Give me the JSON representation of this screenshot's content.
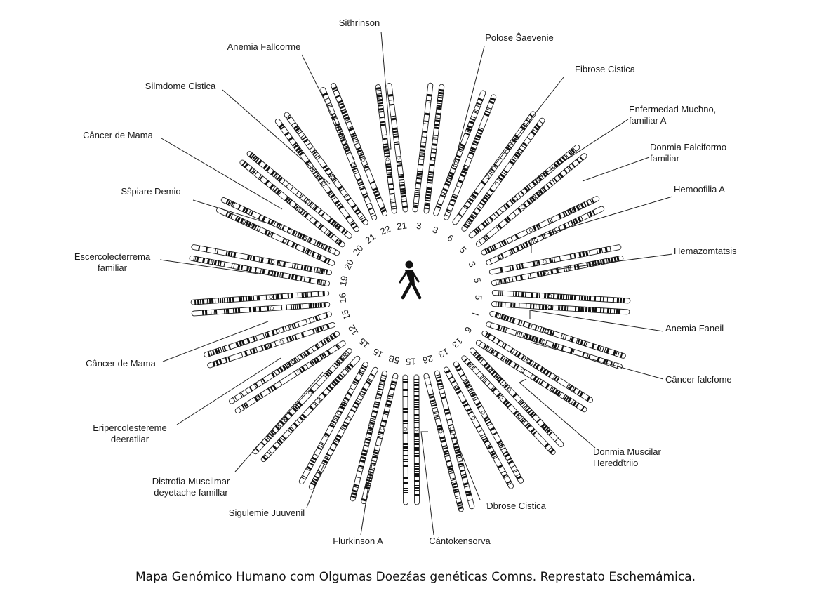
{
  "diagram": {
    "caption": "Mapa Genómico Humano com Olgumas Doezέas genéticas Comns. Represtato Eschemámica.",
    "center_icon": "walking-person-icon",
    "chromosomes": [
      {
        "label": "3"
      },
      {
        "label": "3"
      },
      {
        "label": "6"
      },
      {
        "label": "5"
      },
      {
        "label": "3"
      },
      {
        "label": "5"
      },
      {
        "label": "5"
      },
      {
        "label": "I"
      },
      {
        "label": "6"
      },
      {
        "label": "13"
      },
      {
        "label": "13"
      },
      {
        "label": "26"
      },
      {
        "label": "15"
      },
      {
        "label": "5B"
      },
      {
        "label": "15"
      },
      {
        "label": "15"
      },
      {
        "label": "12"
      },
      {
        "label": "15"
      },
      {
        "label": "16"
      },
      {
        "label": "19"
      },
      {
        "label": "20"
      },
      {
        "label": "20"
      },
      {
        "label": "21"
      },
      {
        "label": "22"
      },
      {
        "label": "21"
      }
    ],
    "diseases": [
      {
        "text": [
          "Siℓhrinson"
        ]
      },
      {
        "text": [
          "Polose Ŝaevenie"
        ]
      },
      {
        "text": [
          "Fibrose Cistica"
        ]
      },
      {
        "text": [
          "Enfermedad Mucħno,",
          "familiar A"
        ]
      },
      {
        "text": [
          "Donmia Falciformo",
          "familiar"
        ]
      },
      {
        "text": [
          "Hemoofilia A"
        ]
      },
      {
        "text": [
          "Hemazomtatsis"
        ]
      },
      {
        "text": [
          "Anemia Faneil"
        ]
      },
      {
        "text": [
          "Câncer falcfome"
        ]
      },
      {
        "text": [
          "Donmia Muscilar",
          "Heredďtriio"
        ]
      },
      {
        "text": [
          "Ɗbrose Cistica"
        ]
      },
      {
        "text": [
          "Cántokensorva"
        ]
      },
      {
        "text": [
          "Flurkinson A"
        ]
      },
      {
        "text": [
          "Sigulemie Juuvenil"
        ]
      },
      {
        "text": [
          "Distrofia Muscilmar",
          "deyetache famillar"
        ]
      },
      {
        "text": [
          "Eripercolestereme",
          "deeratliar"
        ]
      },
      {
        "text": [
          "Câncer de Mama"
        ]
      },
      {
        "text": [
          "Escercolecterrema",
          "familiar"
        ]
      },
      {
        "text": [
          "Sŝpiare Demio"
        ]
      },
      {
        "text": [
          "Câncer de Mama"
        ]
      },
      {
        "text": [
          "Silmdome Cistica"
        ]
      },
      {
        "text": [
          "Anemia Fallcorme"
        ]
      }
    ]
  }
}
